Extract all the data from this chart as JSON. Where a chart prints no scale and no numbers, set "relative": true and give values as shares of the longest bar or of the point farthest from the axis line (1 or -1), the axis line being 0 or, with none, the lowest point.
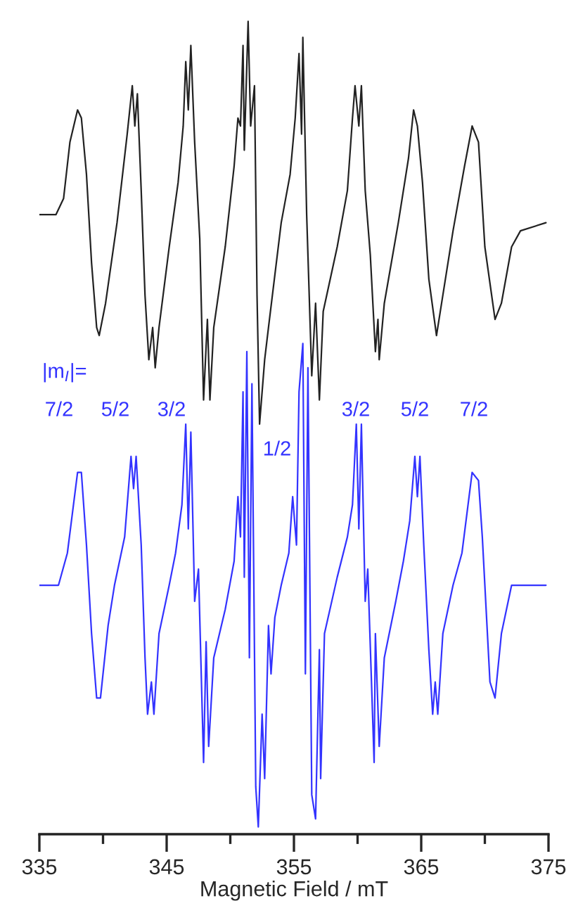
{
  "chart_data": {
    "type": "line",
    "relative": true,
    "xlabel": "Magnetic Field / mT",
    "xlim": [
      335,
      375
    ],
    "xticks": [
      335,
      {
        "value": 340,
        "label": null
      },
      345,
      {
        "value": 350,
        "label": null
      },
      355,
      {
        "value": 360,
        "label": null
      },
      365,
      {
        "value": 370,
        "label": null
      },
      375
    ],
    "tick_labels": "x",
    "grid": false,
    "legend": false,
    "marker": "none",
    "line_style": "solid",
    "series": [
      {
        "color": "#222222",
        "x": [
          335.0,
          336.3,
          336.9,
          337.4,
          338.0,
          338.3,
          338.7,
          339.1,
          339.5,
          339.7,
          340.2,
          341.1,
          341.9,
          342.3,
          342.5,
          342.7,
          343.0,
          343.3,
          343.6,
          343.9,
          344.1,
          344.4,
          345.2,
          345.9,
          346.3,
          346.5,
          346.7,
          346.9,
          347.2,
          347.6,
          347.9,
          348.2,
          348.4,
          348.7,
          349.6,
          350.3,
          350.6,
          350.8,
          351.0,
          351.1,
          351.4,
          351.6,
          351.9,
          352.1,
          352.3,
          352.7,
          353.0,
          354.0,
          354.7,
          355.1,
          355.4,
          355.6,
          355.7,
          356.0,
          356.4,
          356.7,
          357.0,
          357.3,
          358.4,
          359.2,
          359.6,
          359.8,
          360.1,
          360.3,
          360.6,
          361.0,
          361.4,
          361.6,
          361.7,
          362.1,
          363.2,
          364.0,
          364.4,
          364.7,
          365.1,
          365.6,
          366.2,
          366.5,
          367.5,
          368.4,
          369.0,
          369.5,
          370.0,
          370.8,
          371.3,
          372.1,
          372.8,
          374.8
        ],
        "values": [
          0.76,
          0.76,
          0.78,
          0.85,
          0.89,
          0.88,
          0.81,
          0.7,
          0.62,
          0.61,
          0.65,
          0.75,
          0.86,
          0.92,
          0.87,
          0.91,
          0.79,
          0.66,
          0.58,
          0.62,
          0.57,
          0.62,
          0.72,
          0.8,
          0.87,
          0.95,
          0.89,
          0.97,
          0.85,
          0.73,
          0.53,
          0.63,
          0.53,
          0.62,
          0.72,
          0.82,
          0.88,
          0.87,
          0.97,
          0.84,
          1.0,
          0.87,
          0.92,
          0.66,
          0.5,
          0.58,
          0.62,
          0.75,
          0.81,
          0.88,
          0.96,
          0.86,
          0.98,
          0.76,
          0.56,
          0.65,
          0.53,
          0.64,
          0.72,
          0.79,
          0.88,
          0.92,
          0.87,
          0.92,
          0.79,
          0.71,
          0.59,
          0.63,
          0.58,
          0.65,
          0.75,
          0.83,
          0.89,
          0.87,
          0.8,
          0.68,
          0.61,
          0.64,
          0.74,
          0.82,
          0.87,
          0.85,
          0.72,
          0.63,
          0.65,
          0.72,
          0.74,
          0.75
        ]
      },
      {
        "color": "#3333ff",
        "x": [
          335.0,
          336.5,
          337.2,
          338.0,
          338.3,
          338.7,
          339.1,
          339.5,
          339.8,
          340.4,
          340.9,
          341.7,
          342.2,
          342.4,
          342.6,
          343.0,
          343.3,
          343.5,
          343.8,
          344.0,
          344.4,
          345.2,
          345.7,
          346.2,
          346.5,
          346.7,
          346.9,
          347.2,
          347.5,
          347.9,
          348.1,
          348.3,
          348.7,
          349.6,
          350.3,
          350.6,
          350.8,
          351.0,
          351.1,
          351.3,
          351.5,
          351.7,
          352.0,
          352.2,
          352.5,
          352.7,
          353.0,
          353.2,
          353.5,
          354.0,
          354.6,
          354.9,
          355.2,
          355.4,
          355.7,
          355.9,
          356.1,
          356.4,
          356.7,
          357.0,
          357.1,
          357.4,
          358.4,
          359.2,
          359.6,
          359.9,
          360.1,
          360.3,
          360.6,
          360.8,
          361.3,
          361.4,
          361.7,
          362.1,
          363.0,
          363.6,
          364.1,
          364.5,
          364.7,
          364.9,
          365.2,
          365.6,
          365.9,
          366.1,
          366.3,
          366.7,
          367.5,
          368.2,
          369.0,
          369.5,
          369.8,
          370.4,
          370.8,
          371.3,
          372.1,
          374.8
        ],
        "values": [
          0.3,
          0.3,
          0.34,
          0.44,
          0.44,
          0.35,
          0.24,
          0.16,
          0.16,
          0.25,
          0.3,
          0.36,
          0.46,
          0.42,
          0.46,
          0.35,
          0.21,
          0.14,
          0.18,
          0.14,
          0.24,
          0.3,
          0.34,
          0.4,
          0.5,
          0.37,
          0.49,
          0.28,
          0.32,
          0.08,
          0.23,
          0.1,
          0.21,
          0.27,
          0.33,
          0.41,
          0.36,
          0.54,
          0.31,
          0.59,
          0.21,
          0.55,
          0.05,
          0.0,
          0.14,
          0.06,
          0.25,
          0.19,
          0.26,
          0.3,
          0.34,
          0.41,
          0.35,
          0.54,
          0.6,
          0.19,
          0.57,
          0.04,
          0.01,
          0.22,
          0.06,
          0.24,
          0.31,
          0.36,
          0.4,
          0.5,
          0.37,
          0.5,
          0.28,
          0.32,
          0.08,
          0.24,
          0.1,
          0.21,
          0.28,
          0.33,
          0.38,
          0.46,
          0.41,
          0.46,
          0.35,
          0.22,
          0.14,
          0.18,
          0.14,
          0.24,
          0.3,
          0.34,
          0.44,
          0.43,
          0.36,
          0.18,
          0.16,
          0.24,
          0.3,
          0.3
        ]
      }
    ],
    "annotations": [
      "|m$_{I}$|=",
      "7/2",
      "5/2",
      "3/2",
      "1/2",
      "3/2",
      "5/2",
      "7/2"
    ]
  }
}
